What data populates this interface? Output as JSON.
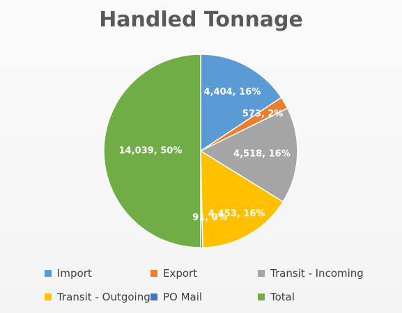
{
  "chart_data": {
    "type": "pie",
    "title": "Handled Tonnage",
    "categories": [
      "Import",
      "Export",
      "Transit - Incoming",
      "Transit - Outgoing",
      "PO Mail",
      "Total"
    ],
    "values": [
      4404,
      573,
      4518,
      4453,
      91,
      14039
    ],
    "data_labels": [
      "4,404, 16%",
      "573, 2%",
      "4,518, 16%",
      "4,453, 16%",
      "91, 0%",
      "14,039, 50%"
    ],
    "colors": [
      "#5b9bd5",
      "#ed7d31",
      "#a5a5a5",
      "#ffc000",
      "#4472c4",
      "#70ad47"
    ],
    "start_angle": "12 o'clock",
    "direction": "clockwise",
    "legend_position": "bottom"
  }
}
